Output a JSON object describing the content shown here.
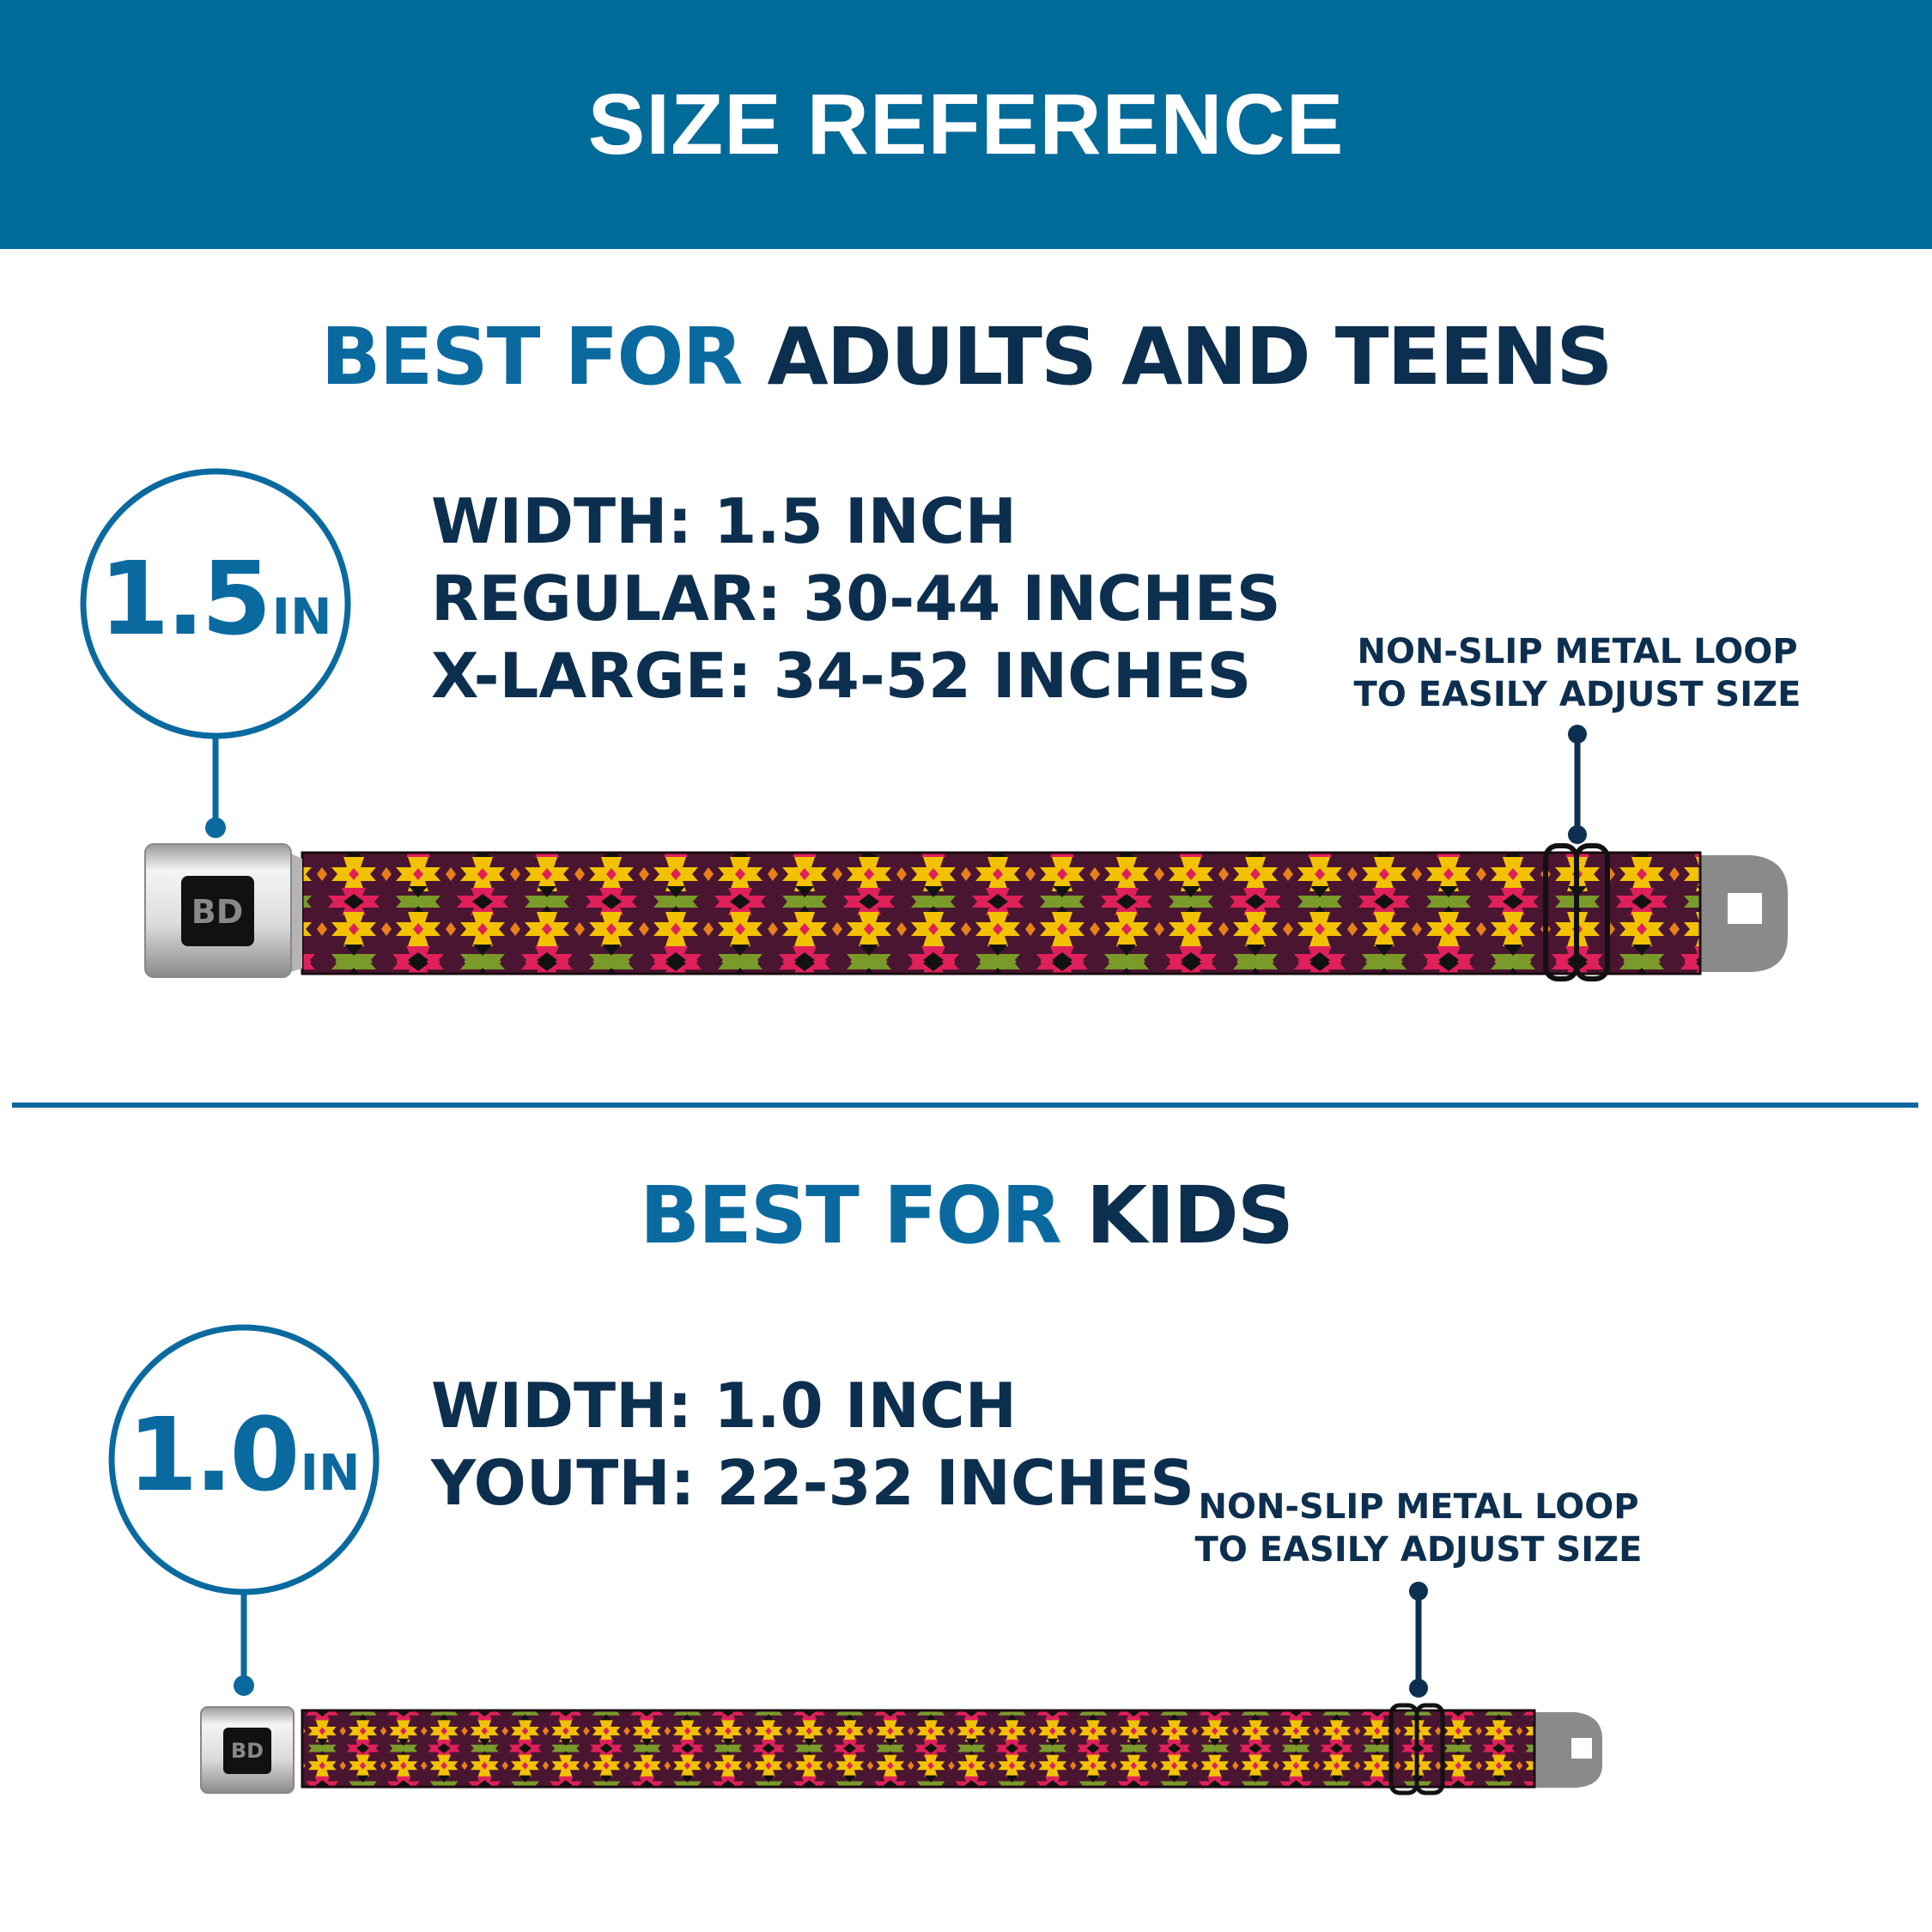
{
  "header": {
    "title": "SIZE REFERENCE"
  },
  "adults": {
    "title_prefix": "BEST FOR",
    "title_main": "ADULTS AND TEENS",
    "width_value": "1.5",
    "width_unit": "IN",
    "specs": [
      "WIDTH: 1.5 INCH",
      "REGULAR: 30-44 INCHES",
      "X-LARGE: 34-52 INCHES"
    ],
    "note": [
      "NON-SLIP METAL LOOP",
      "TO EASILY ADJUST SIZE"
    ]
  },
  "kids": {
    "title_prefix": "BEST FOR",
    "title_main": "KIDS",
    "width_value": "1.0",
    "width_unit": "IN",
    "specs": [
      "WIDTH: 1.0 INCH",
      "YOUTH: 22-32 INCHES"
    ],
    "note": [
      "NON-SLIP METAL LOOP",
      "TO EASILY ADJUST SIZE"
    ]
  },
  "colors": {
    "header": "#006a99",
    "accent": "#0a6aa0",
    "navy": "#0d2f4f",
    "strap": "#4a1530",
    "yellow": "#f2c200",
    "red": "#e0205a",
    "green": "#7a9a2a",
    "orange": "#e8801a"
  }
}
